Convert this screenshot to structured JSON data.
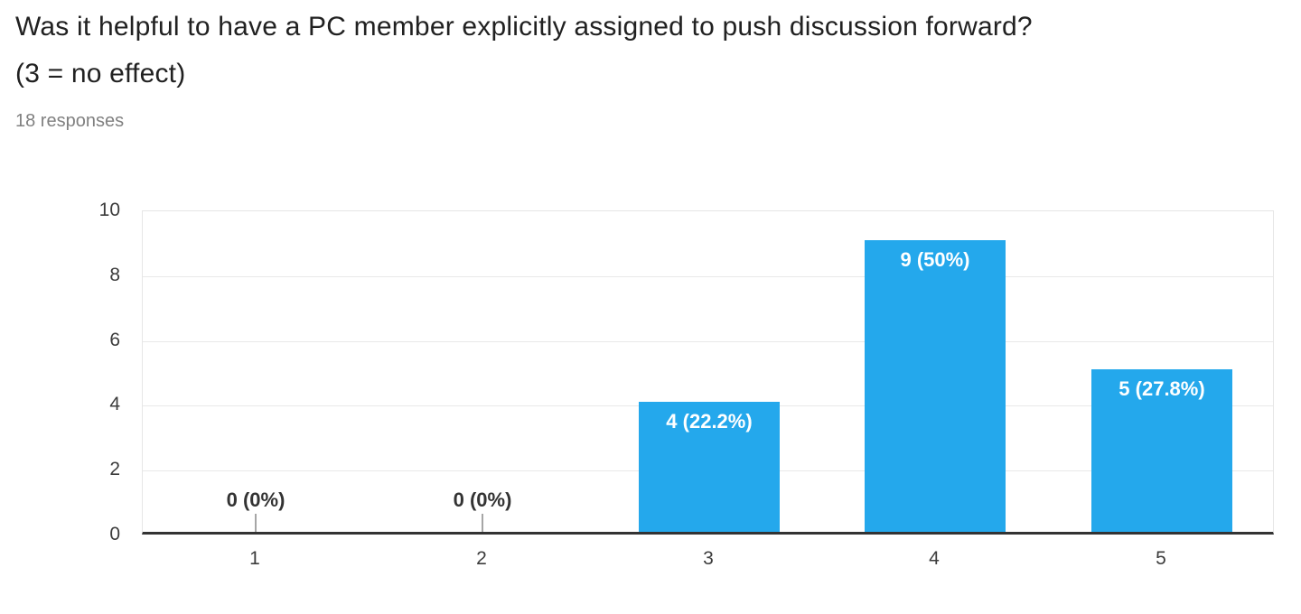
{
  "header": {
    "title": "Was it helpful to have a PC member explicitly assigned to push discussion forward? (3 = no effect)",
    "subtitle": "18 responses"
  },
  "colors": {
    "bar": "#24a8ec",
    "bar_label_inside": "#ffffff",
    "bar_label_outside": "#333333",
    "gridline": "#e9e9e9",
    "baseline": "#333333",
    "axis_text": "#3c3c3c",
    "title_text": "#212121",
    "subtitle_text": "#808080",
    "stem": "#a6a6a6",
    "background": "#ffffff"
  },
  "chart_data": {
    "type": "bar",
    "title": "Was it helpful to have a PC member explicitly assigned to push discussion forward? (3 = no effect)",
    "subtitle": "18 responses",
    "total_responses": 18,
    "categories": [
      "1",
      "2",
      "3",
      "4",
      "5"
    ],
    "values": [
      0,
      0,
      4,
      9,
      5
    ],
    "bar_labels": [
      "0 (0%)",
      "0 (0%)",
      "4 (22.2%)",
      "9 (50%)",
      "5 (27.8%)"
    ],
    "xlabel": "",
    "ylabel": "",
    "ylim": [
      0,
      10
    ],
    "yticks": [
      0,
      2,
      4,
      6,
      8,
      10
    ],
    "grid": true,
    "legend": "none"
  }
}
